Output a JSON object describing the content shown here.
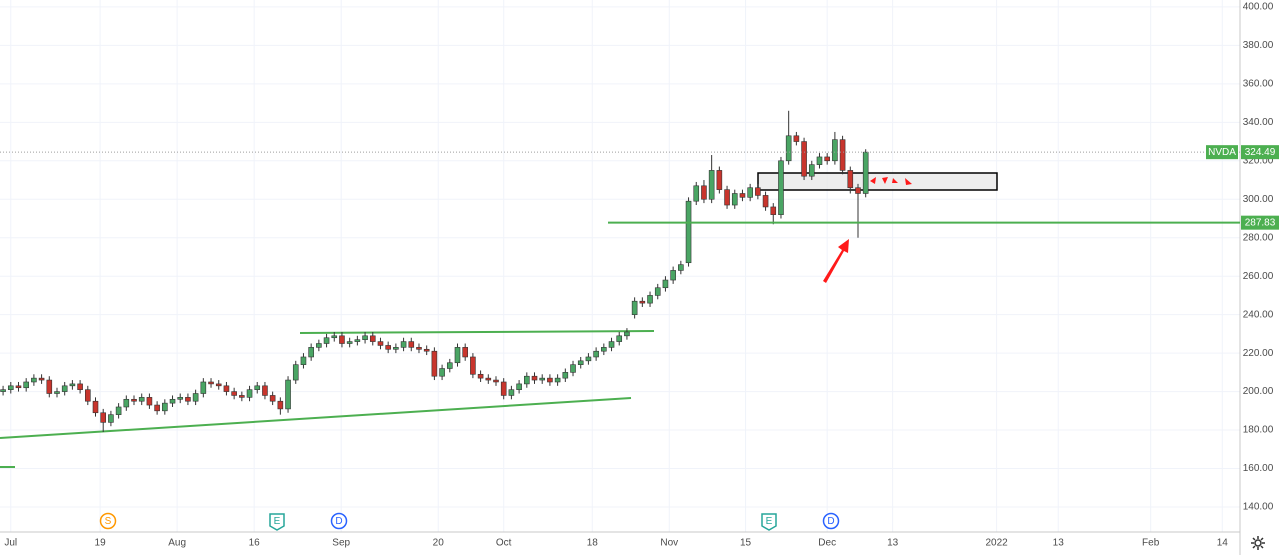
{
  "chart_data": {
    "type": "candlestick",
    "symbol": "NVDA",
    "up_color": "#4aa564",
    "down_color": "#c8352d",
    "grid": true,
    "ylim": [
      127,
      403.6
    ],
    "yticks": [
      {
        "value": 140,
        "label": "140.00"
      },
      {
        "value": 160,
        "label": "160.00"
      },
      {
        "value": 180,
        "label": "180.00"
      },
      {
        "value": 200,
        "label": "200.00"
      },
      {
        "value": 220,
        "label": "220.00"
      },
      {
        "value": 240,
        "label": "240.00"
      },
      {
        "value": 260,
        "label": "260.00"
      },
      {
        "value": 280,
        "label": "280.00"
      },
      {
        "value": 300,
        "label": "300.00"
      },
      {
        "value": 320,
        "label": "320.00"
      },
      {
        "value": 340,
        "label": "340.00"
      },
      {
        "value": 360,
        "label": "360.00"
      },
      {
        "value": 380,
        "label": "380.00"
      },
      {
        "value": 400,
        "label": "400.00"
      }
    ],
    "xlim": [
      -0.4,
      160.6
    ],
    "xticks": [
      {
        "value": 1,
        "label": "Jul"
      },
      {
        "value": 12.6,
        "label": "19"
      },
      {
        "value": 22.6,
        "label": "Aug"
      },
      {
        "value": 32.6,
        "label": "16"
      },
      {
        "value": 43.9,
        "label": "Sep"
      },
      {
        "value": 56.5,
        "label": "20"
      },
      {
        "value": 65,
        "label": "Oct"
      },
      {
        "value": 76.5,
        "label": "18"
      },
      {
        "value": 86.5,
        "label": "Nov"
      },
      {
        "value": 96.4,
        "label": "15"
      },
      {
        "value": 107,
        "label": "Dec"
      },
      {
        "value": 115.5,
        "label": "13"
      },
      {
        "value": 129,
        "label": "2022"
      },
      {
        "value": 137,
        "label": "13"
      },
      {
        "value": 149,
        "label": "Feb"
      },
      {
        "value": 158.3,
        "label": "14"
      }
    ],
    "open": [
      200,
      201,
      203,
      202,
      205,
      207,
      206,
      199,
      200,
      203,
      204,
      201,
      195,
      189,
      184,
      188,
      192,
      196,
      195,
      197,
      193,
      190,
      194,
      196,
      197,
      195,
      199,
      205,
      204,
      203,
      200,
      198,
      197,
      201,
      203,
      198,
      195,
      191,
      206,
      214,
      218,
      223,
      225,
      228,
      229,
      225,
      226,
      227,
      229,
      226,
      224,
      222,
      223,
      226,
      223,
      222,
      221,
      208,
      212,
      215,
      223,
      218,
      209,
      207,
      206,
      205,
      198,
      201,
      204,
      208,
      206,
      207,
      205,
      207,
      210,
      214,
      216,
      218,
      221,
      223,
      226,
      229,
      240,
      247,
      246,
      250,
      254,
      258,
      263,
      267,
      299,
      307,
      300,
      315,
      305,
      297,
      303,
      301,
      306,
      302,
      296,
      292,
      320,
      333,
      330,
      312,
      318,
      322,
      320,
      331,
      315,
      306,
      303
    ],
    "high": [
      203,
      205,
      205,
      207,
      209,
      209,
      208,
      202,
      205,
      206,
      206,
      203,
      197,
      191,
      190,
      194,
      198,
      198,
      199,
      199,
      195,
      196,
      198,
      199,
      199,
      201,
      207,
      207,
      206,
      205,
      202,
      200,
      203,
      205,
      205,
      200,
      197,
      208,
      216,
      220,
      225,
      227,
      230,
      231,
      231,
      228,
      229,
      231,
      231,
      228,
      226,
      225,
      228,
      228,
      225,
      224,
      223,
      214,
      217,
      225,
      225,
      220,
      211,
      209,
      208,
      207,
      203,
      206,
      210,
      210,
      209,
      209,
      209,
      212,
      216,
      218,
      220,
      223,
      225,
      228,
      231,
      233,
      249,
      249,
      252,
      256,
      260,
      265,
      268,
      301,
      309,
      310,
      323,
      317,
      307,
      305,
      305,
      308,
      308,
      304,
      298,
      322,
      346,
      335,
      332,
      320,
      324,
      324,
      335,
      333,
      317,
      308,
      326
    ],
    "low": [
      198,
      199,
      200,
      200,
      203,
      204,
      197,
      197,
      198,
      201,
      199,
      193,
      187,
      179,
      182,
      186,
      190,
      193,
      193,
      191,
      188,
      188,
      192,
      194,
      193,
      193,
      197,
      202,
      201,
      198,
      196,
      195,
      195,
      199,
      196,
      193,
      188,
      189,
      204,
      212,
      216,
      221,
      223,
      226,
      223,
      223,
      224,
      225,
      224,
      222,
      220,
      220,
      221,
      221,
      220,
      219,
      206,
      206,
      210,
      213,
      216,
      207,
      205,
      204,
      203,
      196,
      196,
      199,
      202,
      204,
      204,
      203,
      203,
      205,
      208,
      212,
      214,
      216,
      219,
      221,
      224,
      227,
      238,
      244,
      244,
      248,
      252,
      256,
      261,
      265,
      297,
      298,
      298,
      303,
      295,
      295,
      299,
      299,
      300,
      294,
      287,
      290,
      318,
      328,
      310,
      310,
      316,
      318,
      318,
      313,
      303,
      280,
      301
    ],
    "close": [
      201,
      203,
      202,
      205,
      207,
      206,
      199,
      200,
      203,
      204,
      201,
      195,
      189,
      184,
      188,
      192,
      196,
      195,
      197,
      193,
      190,
      194,
      196,
      197,
      195,
      199,
      205,
      204,
      203,
      200,
      198,
      197,
      201,
      203,
      198,
      195,
      191,
      206,
      214,
      218,
      223,
      225,
      228,
      229,
      225,
      226,
      227,
      229,
      226,
      224,
      222,
      223,
      226,
      223,
      222,
      221,
      208,
      212,
      215,
      223,
      218,
      209,
      207,
      206,
      205,
      198,
      201,
      204,
      208,
      206,
      207,
      205,
      207,
      210,
      214,
      216,
      218,
      221,
      223,
      226,
      229,
      231,
      247,
      246,
      250,
      254,
      258,
      263,
      266,
      299,
      307,
      300,
      315,
      305,
      297,
      303,
      301,
      306,
      302,
      296,
      292,
      320,
      333,
      330,
      312,
      318,
      322,
      320,
      331,
      315,
      306,
      303,
      324.49
    ],
    "level": 287.83,
    "events": [
      "S",
      "E",
      "D",
      "E",
      "D"
    ]
  }
}
